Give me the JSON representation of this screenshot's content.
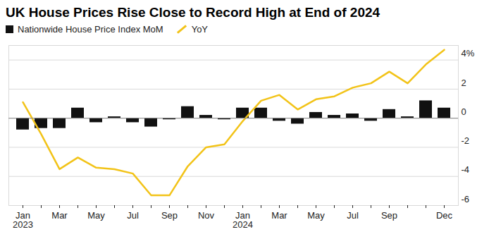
{
  "chart_data": {
    "type": "bar",
    "title": "UK House Prices Rise Close to Record High at End of 2024",
    "categories": [
      "Jan\n2023",
      null,
      "Mar",
      null,
      "May",
      null,
      "Jul",
      null,
      "Sep",
      null,
      "Nov",
      null,
      "Jan\n2024",
      null,
      "Mar",
      null,
      "May",
      null,
      "Jul",
      null,
      "Sep",
      null,
      null,
      "Dec"
    ],
    "series": [
      {
        "name": "Nationwide House Price Index MoM",
        "type": "bar",
        "color": "#111111",
        "values": [
          -0.8,
          -0.7,
          -0.7,
          0.7,
          -0.3,
          0.1,
          -0.3,
          -0.6,
          -0.1,
          0.8,
          0.2,
          -0.1,
          0.7,
          0.7,
          -0.2,
          -0.4,
          0.4,
          0.2,
          0.3,
          -0.2,
          0.6,
          0.1,
          1.2,
          0.7
        ]
      },
      {
        "name": "YoY",
        "type": "line",
        "color": "#f2c318",
        "values": [
          1.1,
          -1.1,
          -3.5,
          -2.7,
          -3.4,
          -3.5,
          -3.8,
          -5.3,
          -5.3,
          -3.3,
          -2.0,
          -1.8,
          -0.2,
          1.2,
          1.6,
          0.6,
          1.3,
          1.5,
          2.1,
          2.4,
          3.2,
          2.4,
          3.7,
          4.7
        ]
      }
    ],
    "ylim": [
      -6,
      5
    ],
    "yticks": [
      -6,
      -4,
      -2,
      0,
      2,
      {
        "value": 4,
        "label": "4%"
      }
    ],
    "grid": true
  }
}
